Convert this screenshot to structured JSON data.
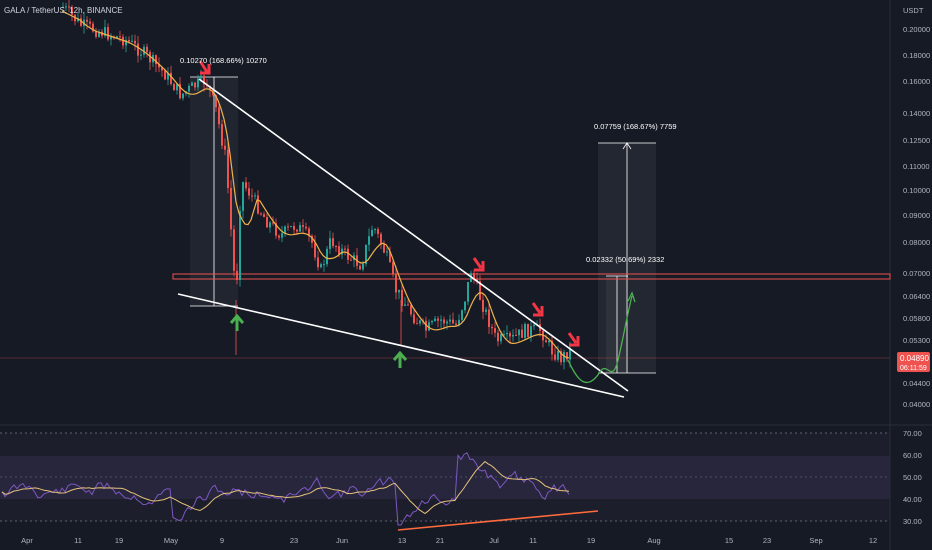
{
  "header": {
    "symbol": "GALA / TetherUS, 12h, BINANCE"
  },
  "price_axis": {
    "currency": "USDT",
    "ticks": [
      "0.20000",
      "0.18000",
      "0.16000",
      "0.14000",
      "0.12500",
      "0.11000",
      "0.10000",
      "0.09000",
      "0.08000",
      "0.07000",
      "0.06400",
      "0.05800",
      "0.05300",
      "0.04400",
      "0.04000"
    ]
  },
  "rsi_axis": {
    "ticks": [
      "70.00",
      "60.00",
      "50.00",
      "40.00",
      "30.00"
    ]
  },
  "time_axis": {
    "ticks": [
      "Apr",
      "11",
      "19",
      "May",
      "9",
      "23",
      "Jun",
      "13",
      "21",
      "Jul",
      "11",
      "19",
      "Aug",
      "15",
      "23",
      "Sep",
      "12"
    ]
  },
  "last_price": {
    "price": "0.04890",
    "countdown": "06:11:59"
  },
  "annotations": {
    "measure_top": "0.10270 (168.66%) 10270",
    "target_big": "0.07759 (168.67%) 7759",
    "target_small": "0.02332 (50.69%) 2332"
  },
  "colors": {
    "bg": "#161a25",
    "up": "#26a69a",
    "down": "#ef5350",
    "ma": "#f0b34a",
    "rsi": "#7e57c2",
    "rsi_ma": "#e6c27a",
    "resistance": "#ef5350",
    "wedge": "#ffffff",
    "trendline": "#ff6b3d",
    "arrow_up": "#4caf50",
    "arrow_down": "#f23645",
    "projection": "#4caf50"
  },
  "chart_data": {
    "type": "candlestick",
    "title": "GALA / TetherUS, 12h, BINANCE",
    "y_scale": "log",
    "ylim": [
      0.038,
      0.23
    ],
    "x": [
      "Apr",
      "11",
      "19",
      "May",
      "9",
      "23",
      "Jun",
      "13",
      "21",
      "Jul",
      "11",
      "19"
    ],
    "close_approx": [
      0.225,
      0.215,
      0.19,
      0.16,
      0.072,
      0.085,
      0.078,
      0.055,
      0.063,
      0.054,
      0.055,
      0.0489
    ],
    "resistance_level": 0.0696,
    "indicators": [
      "MA",
      "RSI 14"
    ],
    "rsi_levels": [
      70,
      50,
      30
    ],
    "grid": true
  }
}
